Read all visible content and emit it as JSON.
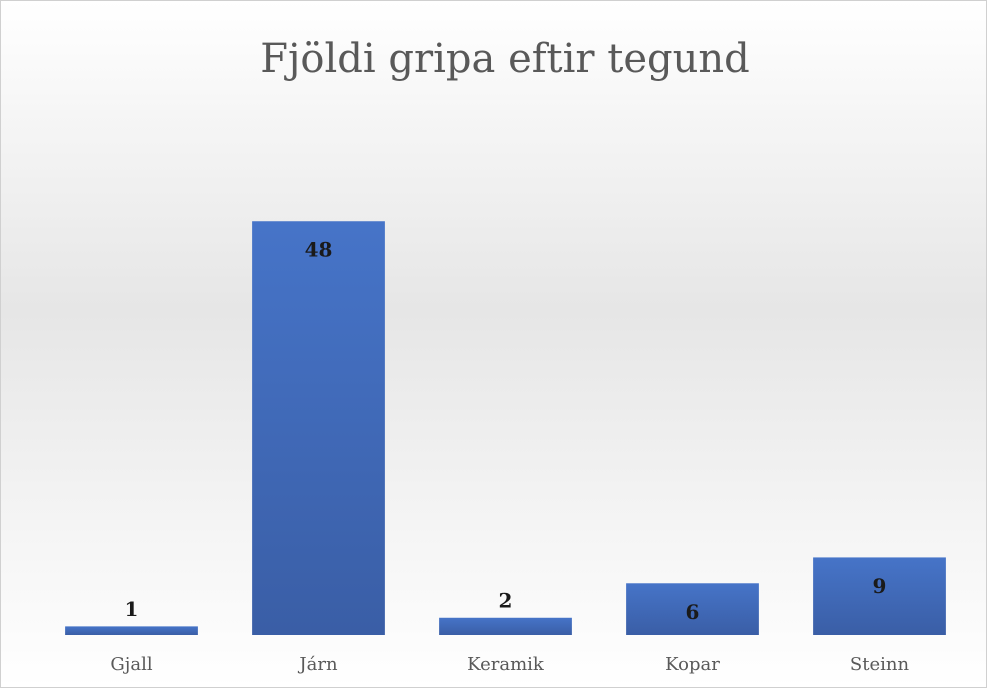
{
  "chart_data": {
    "type": "bar",
    "title": "Fjöldi gripa eftir tegund",
    "categories": [
      "Gjall",
      "Járn",
      "Keramik",
      "Kopar",
      "Steinn"
    ],
    "values": [
      1,
      48,
      2,
      6,
      9
    ],
    "color": "#4472c4",
    "ylim": [
      0,
      50
    ]
  }
}
